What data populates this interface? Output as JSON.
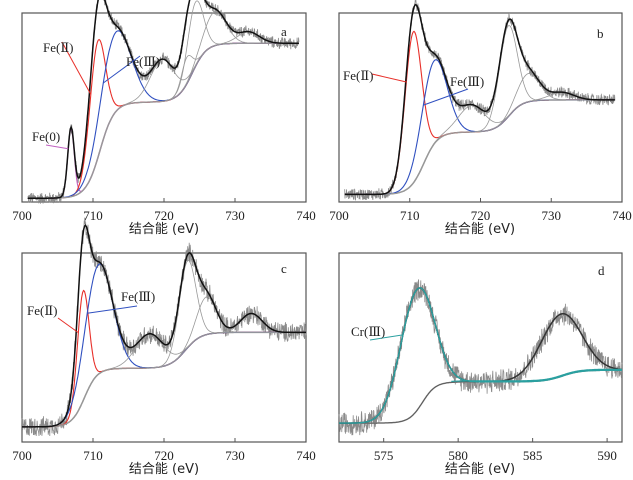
{
  "chart_data": [
    {
      "type": "line",
      "panel_label": "a",
      "xlabel": "结合能 (eV)",
      "xlim": [
        700,
        740
      ],
      "xticks": [
        "700",
        "710",
        "720",
        "730",
        "740"
      ],
      "ylabel": "",
      "yticks": [],
      "background": {
        "y0": 0.02,
        "y1": 0.84,
        "steps": [
          {
            "center": 711.0,
            "width": 2.0,
            "frac": 0.62
          },
          {
            "center": 724.0,
            "width": 2.0,
            "frac": 0.38
          }
        ]
      },
      "components": [
        {
          "name": "Fe(0)",
          "color": "#c060c0",
          "center": 706.9,
          "fwhm": 1.1,
          "height": 0.36
        },
        {
          "name": "Fe(Ⅱ)",
          "color": "#e8302a",
          "center": 710.6,
          "fwhm": 2.6,
          "height": 0.62
        },
        {
          "name": "Fe(Ⅲ)",
          "color": "#3050c0",
          "center": 713.2,
          "fwhm": 5.0,
          "height": 0.42
        },
        {
          "name": "satellite",
          "color": "#999999",
          "center": 719.8,
          "fwhm": 4.0,
          "height": 0.22
        },
        {
          "name": "satellite",
          "color": "#999999",
          "center": 723.2,
          "fwhm": 1.8,
          "height": 0.14
        },
        {
          "name": "satellite",
          "color": "#999999",
          "center": 724.4,
          "fwhm": 2.6,
          "height": 0.34
        },
        {
          "name": "satellite",
          "color": "#999999",
          "center": 727.2,
          "fwhm": 3.6,
          "height": 0.18
        },
        {
          "name": "satellite",
          "color": "#999999",
          "center": 731.9,
          "fwhm": 3.6,
          "height": 0.06
        }
      ],
      "annotations": [
        {
          "text": "Fe(0)",
          "color": "#c060c0"
        },
        {
          "text": "Fe(Ⅱ)",
          "color": "#e8302a"
        },
        {
          "text": "Fe(Ⅲ)",
          "color": "#3050c0"
        }
      ]
    },
    {
      "type": "line",
      "panel_label": "b",
      "xlabel": "结合能 (eV)",
      "xlim": [
        700,
        740
      ],
      "xticks": [
        "700",
        "710",
        "720",
        "730",
        "740"
      ],
      "ylabel": "",
      "yticks": [],
      "background": {
        "y0": 0.04,
        "y1": 0.54,
        "steps": [
          {
            "center": 712.0,
            "width": 2.0,
            "frac": 0.66
          },
          {
            "center": 724.0,
            "width": 2.0,
            "frac": 0.34
          }
        ]
      },
      "components": [
        {
          "name": "Fe(Ⅱ)",
          "color": "#e8302a",
          "center": 710.5,
          "fwhm": 2.8,
          "height": 0.8
        },
        {
          "name": "Fe(Ⅲ)",
          "color": "#3050c0",
          "center": 713.4,
          "fwhm": 4.2,
          "height": 0.44
        },
        {
          "name": "satellite",
          "color": "#999999",
          "center": 718.8,
          "fwhm": 4.4,
          "height": 0.14
        },
        {
          "name": "satellite",
          "color": "#999999",
          "center": 723.9,
          "fwhm": 3.0,
          "height": 0.48
        },
        {
          "name": "satellite",
          "color": "#999999",
          "center": 726.8,
          "fwhm": 3.6,
          "height": 0.15
        },
        {
          "name": "satellite",
          "color": "#999999",
          "center": 731.5,
          "fwhm": 4.0,
          "height": 0.04
        }
      ],
      "annotations": [
        {
          "text": "Fe(Ⅱ)",
          "color": "#e8302a"
        },
        {
          "text": "Fe(Ⅲ)",
          "color": "#3050c0"
        }
      ]
    },
    {
      "type": "line",
      "panel_label": "c",
      "xlabel": "结合能 (eV)",
      "xlim": [
        700,
        740
      ],
      "xticks": [
        "700",
        "710",
        "720",
        "730",
        "740"
      ],
      "ylabel": "",
      "yticks": [],
      "background": {
        "y0": 0.08,
        "y1": 0.58,
        "steps": [
          {
            "center": 708.8,
            "width": 1.8,
            "frac": 0.62
          },
          {
            "center": 723.0,
            "width": 2.2,
            "frac": 0.38
          }
        ]
      },
      "components": [
        {
          "name": "Fe(Ⅱ)",
          "color": "#e8302a",
          "center": 708.6,
          "fwhm": 1.9,
          "height": 0.58
        },
        {
          "name": "Fe(Ⅲ)",
          "color": "#3050c0",
          "center": 710.8,
          "fwhm": 4.6,
          "height": 0.58
        },
        {
          "name": "satellite",
          "color": "#999999",
          "center": 718.0,
          "fwhm": 4.6,
          "height": 0.18
        },
        {
          "name": "satellite",
          "color": "#999999",
          "center": 723.3,
          "fwhm": 2.8,
          "height": 0.46
        },
        {
          "name": "satellite",
          "color": "#999999",
          "center": 726.0,
          "fwhm": 3.2,
          "height": 0.2
        },
        {
          "name": "satellite",
          "color": "#999999",
          "center": 732.3,
          "fwhm": 3.6,
          "height": 0.1
        }
      ],
      "annotations": [
        {
          "text": "Fe(Ⅱ)",
          "color": "#e8302a"
        },
        {
          "text": "Fe(Ⅲ)",
          "color": "#3050c0"
        }
      ]
    },
    {
      "type": "line",
      "panel_label": "d",
      "xlabel": "结合能 (eV)",
      "xlim": [
        572,
        591
      ],
      "xticks": [
        "575",
        "580",
        "585",
        "590"
      ],
      "ylabel": "",
      "yticks": [],
      "background": {
        "y0": 0.1,
        "y1": 0.38,
        "steps": [
          {
            "center": 577.6,
            "width": 0.9,
            "frac": 0.78
          },
          {
            "center": 587.0,
            "width": 1.2,
            "frac": 0.22
          }
        ]
      },
      "components": [
        {
          "name": "Cr(Ⅲ)",
          "color": "#2aa0a0",
          "center": 577.2,
          "fwhm": 2.6,
          "height": 0.64
        },
        {
          "name": "satellite",
          "color": "#555555",
          "center": 586.9,
          "fwhm": 3.2,
          "height": 0.33
        }
      ],
      "annotations": [
        {
          "text": "Cr(Ⅲ)",
          "color": "#2aa0a0"
        }
      ]
    }
  ]
}
